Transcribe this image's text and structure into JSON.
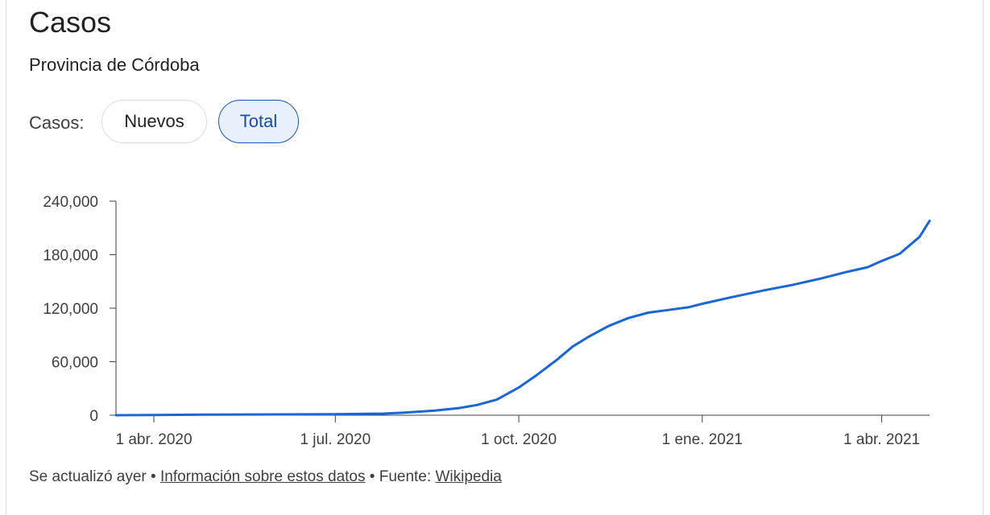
{
  "header": {
    "title": "Casos",
    "subtitle": "Provincia de Córdoba"
  },
  "toggle": {
    "label": "Casos:",
    "options": [
      "Nuevos",
      "Total"
    ],
    "selected": "Total"
  },
  "colors": {
    "line": "#1a66d6",
    "axis": "#3c4043",
    "chip_selected_bg": "#e8f0fe",
    "chip_selected_border": "#1a57b3"
  },
  "chart_data": {
    "type": "line",
    "title": "",
    "xlabel": "",
    "ylabel": "",
    "ylim": [
      0,
      240000
    ],
    "yticks": [
      0,
      60000,
      120000,
      180000,
      240000
    ],
    "ytick_labels": [
      "0",
      "60,000",
      "120,000",
      "180,000",
      "240,000"
    ],
    "xlim": [
      "2020-03-13",
      "2021-04-25"
    ],
    "xticks": [
      "2020-04-01",
      "2020-07-01",
      "2020-10-01",
      "2021-01-01",
      "2021-04-01"
    ],
    "xtick_labels": [
      "1 abr. 2020",
      "1 jul. 2020",
      "1 oct. 2020",
      "1 ene. 2021",
      "1 abr. 2021"
    ],
    "grid": false,
    "legend": "none",
    "series": [
      {
        "x": [
          "2020-03-13",
          "2020-04-01",
          "2020-05-01",
          "2020-06-01",
          "2020-07-01",
          "2020-07-25",
          "2020-08-05",
          "2020-08-20",
          "2020-09-01",
          "2020-09-10",
          "2020-09-20",
          "2020-10-01",
          "2020-10-10",
          "2020-10-20",
          "2020-10-28",
          "2020-11-05",
          "2020-11-15",
          "2020-11-25",
          "2020-12-05",
          "2020-12-15",
          "2020-12-25",
          "2021-01-01",
          "2021-01-15",
          "2021-02-01",
          "2021-02-15",
          "2021-03-01",
          "2021-03-15",
          "2021-03-25",
          "2021-04-01",
          "2021-04-10",
          "2021-04-20",
          "2021-04-25"
        ],
        "y": [
          0,
          200,
          700,
          900,
          1200,
          1800,
          3000,
          5200,
          8000,
          11500,
          17500,
          31000,
          45000,
          62000,
          77000,
          88000,
          100000,
          109000,
          115000,
          118000,
          121000,
          125000,
          132000,
          140000,
          146000,
          153000,
          161000,
          166000,
          173000,
          181000,
          200000,
          218000
        ]
      }
    ]
  },
  "footer": {
    "updated": "Se actualizó ayer",
    "separator": "•",
    "info_link": "Información sobre estos datos",
    "source_label": "Fuente:",
    "source_link": "Wikipedia"
  }
}
